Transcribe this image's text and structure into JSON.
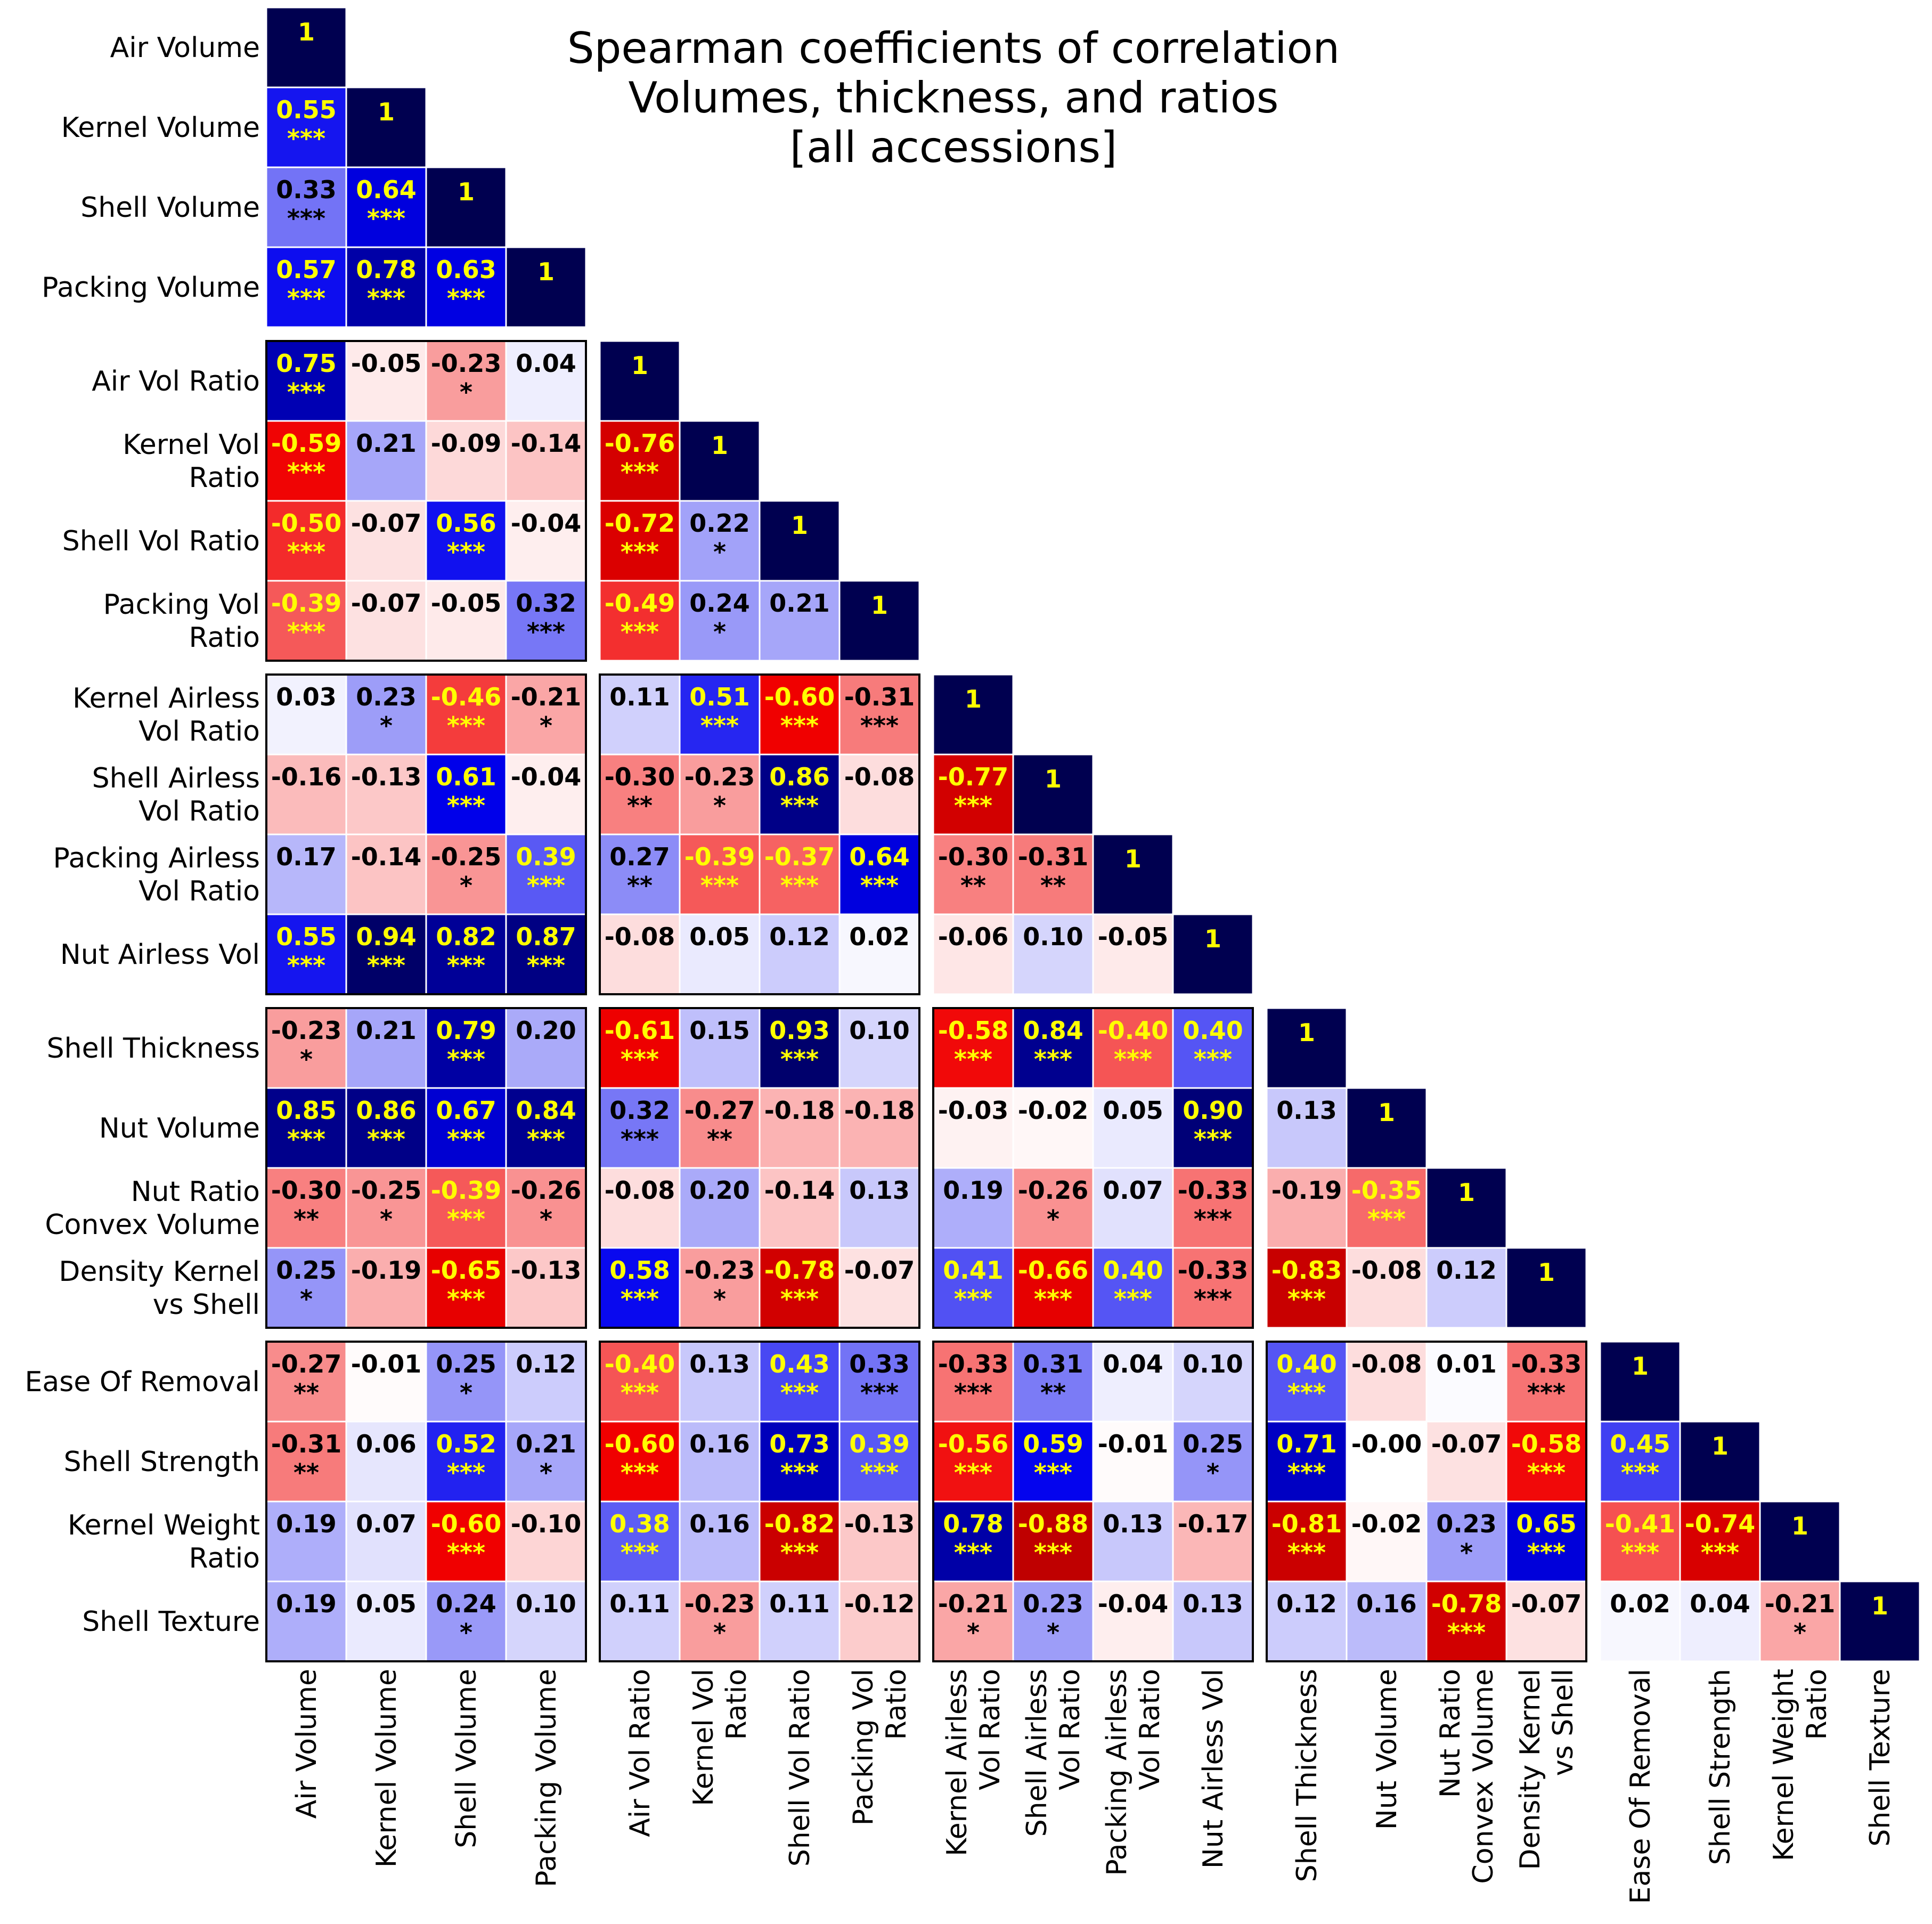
{
  "chart_data": {
    "type": "heatmap",
    "title_lines": [
      "Spearman coefficients of correlation",
      "Volumes, thickness, and ratios",
      "[all accessions]"
    ],
    "colormap": {
      "negative": "#cc0000",
      "zero": "#ffffff",
      "positive": "#0000ee",
      "extreme_negative": "#aa0000",
      "extreme_positive": "#000050",
      "label_strong": "#ffff00",
      "label_weak": "#000000"
    },
    "variables": [
      [
        "Air Volume"
      ],
      [
        "Kernel Volume"
      ],
      [
        "Shell Volume"
      ],
      [
        "Packing Volume"
      ],
      [
        "Air Vol Ratio"
      ],
      [
        "Kernel Vol",
        "Ratio"
      ],
      [
        "Shell Vol Ratio"
      ],
      [
        "Packing Vol",
        "Ratio"
      ],
      [
        "Kernel Airless",
        "Vol Ratio"
      ],
      [
        "Shell Airless",
        "Vol Ratio"
      ],
      [
        "Packing Airless",
        "Vol Ratio"
      ],
      [
        "Nut Airless Vol"
      ],
      [
        "Shell Thickness"
      ],
      [
        "Nut Volume"
      ],
      [
        "Nut Ratio",
        "Convex Volume"
      ],
      [
        "Density Kernel",
        "vs Shell"
      ],
      [
        "Ease Of Removal"
      ],
      [
        "Shell Strength"
      ],
      [
        "Kernel Weight",
        "Ratio"
      ],
      [
        "Shell Texture"
      ]
    ],
    "groups": [
      [
        0,
        3
      ],
      [
        4,
        7
      ],
      [
        8,
        11
      ],
      [
        12,
        15
      ],
      [
        16,
        19
      ]
    ],
    "diagonal_label": "1",
    "values": [
      [],
      [
        0.55
      ],
      [
        0.33,
        0.64
      ],
      [
        0.57,
        0.78,
        0.63
      ],
      [
        0.75,
        -0.05,
        -0.23,
        0.04
      ],
      [
        -0.59,
        0.21,
        -0.09,
        -0.14,
        -0.76
      ],
      [
        -0.5,
        -0.07,
        0.56,
        -0.04,
        -0.72,
        0.22
      ],
      [
        -0.39,
        -0.07,
        -0.05,
        0.32,
        -0.49,
        0.24,
        0.21
      ],
      [
        0.03,
        0.23,
        -0.46,
        -0.21,
        0.11,
        0.51,
        -0.6,
        -0.31
      ],
      [
        -0.16,
        -0.13,
        0.61,
        -0.04,
        -0.3,
        -0.23,
        0.86,
        -0.08,
        -0.77
      ],
      [
        0.17,
        -0.14,
        -0.25,
        0.39,
        0.27,
        -0.39,
        -0.37,
        0.64,
        -0.3,
        -0.31
      ],
      [
        0.55,
        0.94,
        0.82,
        0.87,
        -0.08,
        0.05,
        0.12,
        0.02,
        -0.06,
        0.1,
        -0.05
      ],
      [
        -0.23,
        0.21,
        0.79,
        0.2,
        -0.61,
        0.15,
        0.93,
        0.1,
        -0.58,
        0.84,
        -0.4,
        0.4
      ],
      [
        0.85,
        0.86,
        0.67,
        0.84,
        0.32,
        -0.27,
        -0.18,
        -0.18,
        -0.03,
        -0.02,
        0.05,
        0.9,
        0.13
      ],
      [
        -0.3,
        -0.25,
        -0.39,
        -0.26,
        -0.08,
        0.2,
        -0.14,
        0.13,
        0.19,
        -0.26,
        0.07,
        -0.33,
        -0.19,
        -0.35
      ],
      [
        0.25,
        -0.19,
        -0.65,
        -0.13,
        0.58,
        -0.23,
        -0.78,
        -0.07,
        0.41,
        -0.66,
        0.4,
        -0.33,
        -0.83,
        -0.08,
        0.12
      ],
      [
        -0.27,
        -0.01,
        0.25,
        0.12,
        -0.4,
        0.13,
        0.43,
        0.33,
        -0.33,
        0.31,
        0.04,
        0.1,
        0.4,
        -0.08,
        0.01,
        -0.33
      ],
      [
        -0.31,
        0.06,
        0.52,
        0.21,
        -0.6,
        0.16,
        0.73,
        0.39,
        -0.56,
        0.59,
        -0.01,
        0.25,
        0.71,
        -0.0,
        -0.07,
        -0.58,
        0.45
      ],
      [
        0.19,
        0.07,
        -0.6,
        -0.1,
        0.38,
        0.16,
        -0.82,
        -0.13,
        0.78,
        -0.88,
        0.13,
        -0.17,
        -0.81,
        -0.02,
        0.23,
        0.65,
        -0.41,
        -0.74
      ],
      [
        0.19,
        0.05,
        0.24,
        0.1,
        0.11,
        -0.23,
        0.11,
        -0.12,
        -0.21,
        0.23,
        -0.04,
        0.13,
        0.12,
        0.16,
        -0.78,
        -0.07,
        0.02,
        0.04,
        -0.21
      ]
    ],
    "significance": [
      [],
      [
        "***"
      ],
      [
        "***",
        "***"
      ],
      [
        "***",
        "***",
        "***"
      ],
      [
        "***",
        "",
        "*",
        ""
      ],
      [
        "***",
        "",
        "",
        "",
        "***"
      ],
      [
        "***",
        "",
        "***",
        "",
        "***",
        "*"
      ],
      [
        "***",
        "",
        "",
        "***",
        "***",
        "*",
        ""
      ],
      [
        "",
        "*",
        "***",
        "*",
        "",
        "***",
        "***",
        "***"
      ],
      [
        "",
        "",
        "***",
        "",
        "**",
        "*",
        "***",
        "",
        "***"
      ],
      [
        "",
        "",
        "*",
        "***",
        "**",
        "***",
        "***",
        "***",
        "**",
        "**"
      ],
      [
        "***",
        "***",
        "***",
        "***",
        "",
        "",
        "",
        "",
        "",
        "",
        ""
      ],
      [
        "*",
        "",
        "***",
        "",
        "***",
        "",
        "***",
        "",
        "***",
        "***",
        "***",
        "***"
      ],
      [
        "***",
        "***",
        "***",
        "***",
        "***",
        "**",
        "",
        "",
        "",
        "",
        "",
        "***",
        ""
      ],
      [
        "**",
        "*",
        "***",
        "*",
        "",
        "",
        "",
        "",
        "",
        "*",
        "",
        "***",
        "",
        "***"
      ],
      [
        "*",
        "",
        "***",
        "",
        "***",
        "*",
        "***",
        "",
        "***",
        "***",
        "***",
        "***",
        "***",
        "",
        ""
      ],
      [
        "**",
        "",
        "*",
        "",
        "***",
        "",
        "***",
        "***",
        "***",
        "**",
        "",
        "",
        "***",
        "",
        "",
        "***"
      ],
      [
        "**",
        "",
        "***",
        "*",
        "***",
        "",
        "***",
        "***",
        "***",
        "***",
        "",
        "*",
        "***",
        "",
        "",
        "***",
        "***"
      ],
      [
        "",
        "",
        "***",
        "",
        "***",
        "",
        "***",
        "",
        "***",
        "***",
        "",
        "",
        "***",
        "",
        "*",
        "***",
        "***",
        "***"
      ],
      [
        "",
        "",
        "*",
        "",
        "",
        "*",
        "",
        "",
        "*",
        "*",
        "",
        "",
        "",
        "",
        "***",
        "",
        "",
        "",
        "*"
      ]
    ],
    "ylim": [
      -1,
      1
    ]
  }
}
